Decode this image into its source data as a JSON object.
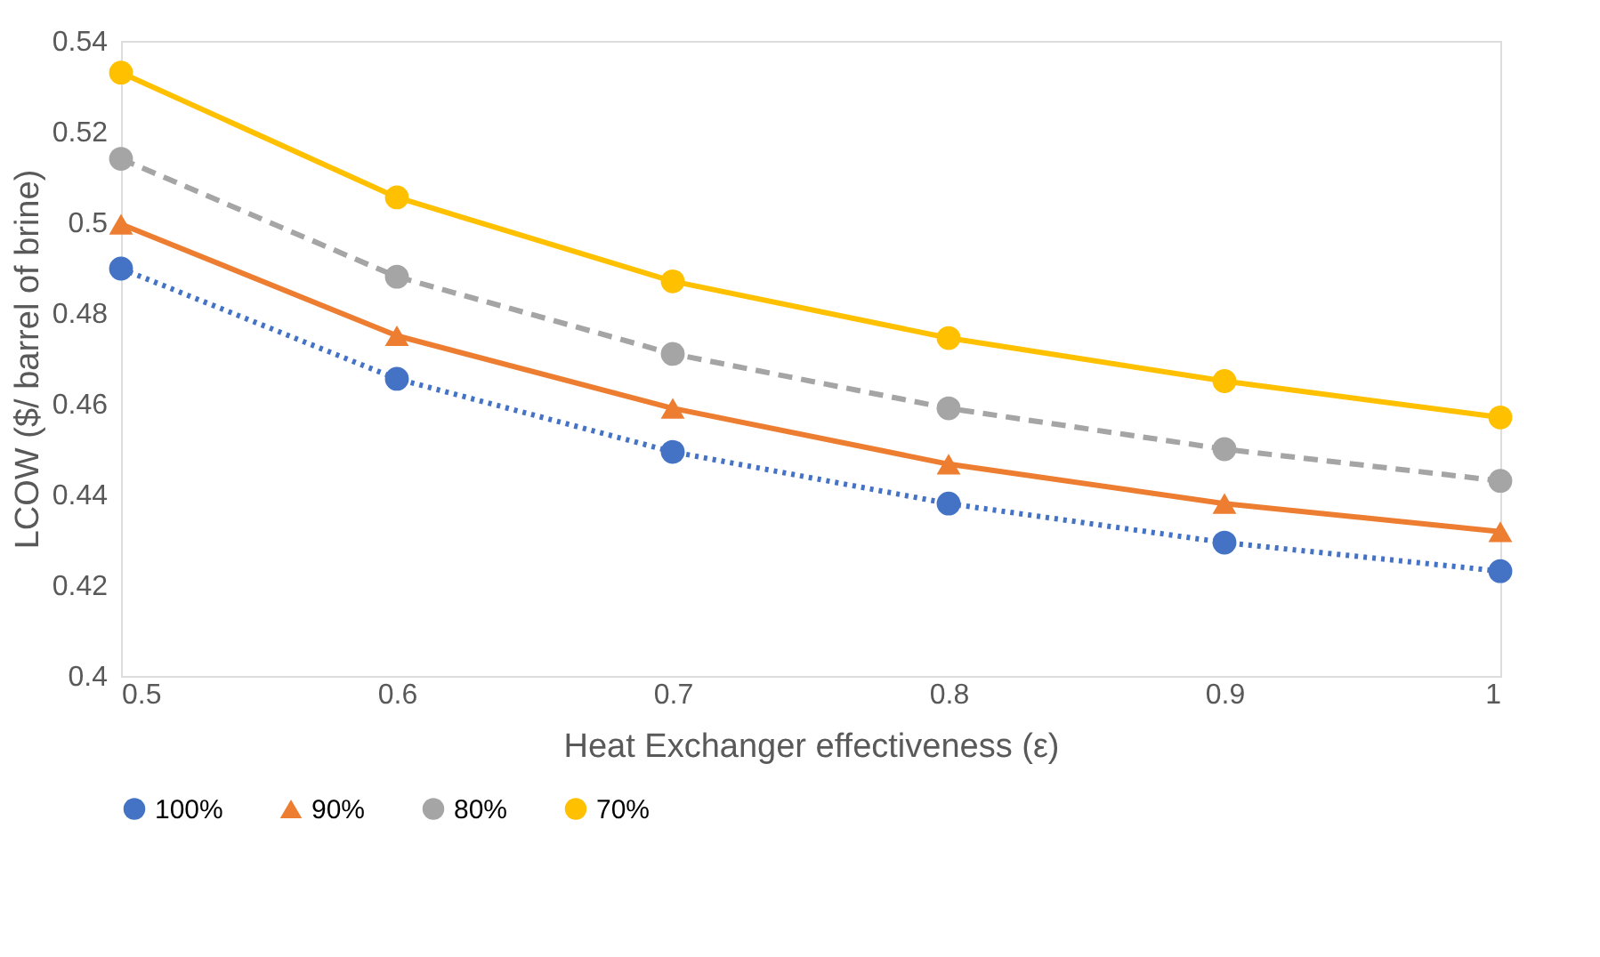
{
  "chart_data": {
    "type": "line",
    "xlabel": "Heat Exchanger effectiveness (ε)",
    "ylabel": "LCOW ($/ barrel of brine)",
    "x": [
      0.5,
      0.6,
      0.7,
      0.8,
      0.9,
      1
    ],
    "xlim": [
      0.5,
      1
    ],
    "xticks": [
      0.5,
      0.6,
      0.7,
      0.8,
      0.9,
      1
    ],
    "ylim": [
      0.4,
      0.54
    ],
    "yticks": [
      0.4,
      0.42,
      0.44,
      0.46,
      0.48,
      0.5,
      0.52,
      0.54
    ],
    "grid": false,
    "legend": "bottom",
    "series": [
      {
        "name": "100%",
        "color": "#4472c4",
        "marker": "circle",
        "line_style": "dotted",
        "values": [
          0.4898,
          0.4655,
          0.4494,
          0.438,
          0.4294,
          0.4231
        ]
      },
      {
        "name": "90%",
        "color": "#ed7d31",
        "marker": "triangle",
        "line_style": "solid",
        "values": [
          0.4996,
          0.475,
          0.459,
          0.4467,
          0.438,
          0.4318
        ]
      },
      {
        "name": "80%",
        "color": "#a5a5a5",
        "marker": "circle",
        "line_style": "dashed",
        "values": [
          0.514,
          0.488,
          0.471,
          0.459,
          0.45,
          0.443
        ]
      },
      {
        "name": "70%",
        "color": "#ffc000",
        "marker": "circle",
        "line_style": "solid",
        "values": [
          0.533,
          0.5055,
          0.487,
          0.4745,
          0.465,
          0.457
        ]
      }
    ]
  }
}
